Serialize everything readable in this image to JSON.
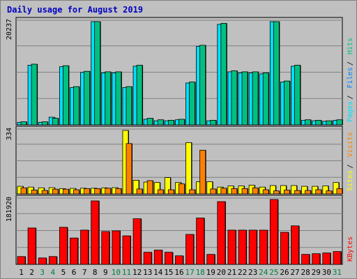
{
  "chart_data": {
    "type": "bar",
    "title": "Daily usage for August 2019",
    "categories": [
      "1",
      "2",
      "3",
      "4",
      "5",
      "6",
      "7",
      "8",
      "9",
      "10",
      "11",
      "12",
      "13",
      "14",
      "15",
      "16",
      "17",
      "18",
      "19",
      "20",
      "21",
      "22",
      "23",
      "24",
      "25",
      "26",
      "27",
      "28",
      "29",
      "30",
      "31"
    ],
    "weekend_days": [
      "3",
      "4",
      "10",
      "11",
      "17",
      "18",
      "24",
      "25",
      "31"
    ],
    "panels": [
      {
        "name": "pages-files-hits",
        "axis_max_label": "20237",
        "ylim": [
          0,
          20237
        ],
        "legend": [
          {
            "label": "Pages",
            "color": "#00e0ff"
          },
          {
            "label": "Files",
            "color": "#0080ff"
          },
          {
            "label": "Hits",
            "color": "#00c080"
          }
        ],
        "series": [
          {
            "name": "Pages",
            "color": "#00e0ff",
            "values": [
              500,
              11700,
              500,
              1500,
              11400,
              7300,
              10300,
              20237,
              10200,
              10200,
              7300,
              11500,
              1100,
              800,
              800,
              1000,
              8200,
              15400,
              800,
              19700,
              10400,
              10200,
              10200,
              10000,
              20237,
              8400,
              11500,
              900,
              800,
              700,
              900
            ]
          },
          {
            "name": "Hits",
            "color": "#00c080",
            "values": [
              600,
              11900,
              600,
              1300,
              11600,
              7500,
              10500,
              20237,
              10400,
              10400,
              7500,
              11700,
              1300,
              1000,
              900,
              1100,
              8400,
              15600,
              900,
              19900,
              10600,
              10400,
              10400,
              10200,
              20237,
              8600,
              11700,
              1000,
              900,
              800,
              1000
            ]
          }
        ]
      },
      {
        "name": "sites-visits",
        "axis_max_label": "334",
        "ylim": [
          0,
          334
        ],
        "legend": [
          {
            "label": "Sites",
            "color": "#ffff00"
          },
          {
            "label": "Visits",
            "color": "#ff8000"
          }
        ],
        "series": [
          {
            "name": "Sites",
            "color": "#ffff00",
            "values": [
              40,
              36,
              32,
              33,
              28,
              29,
              30,
              30,
              32,
              33,
              334,
              72,
              62,
              60,
              86,
              60,
              270,
              64,
              64,
              36,
              42,
              42,
              46,
              36,
              44,
              44,
              44,
              40,
              40,
              42,
              60
            ]
          },
          {
            "name": "Visits",
            "color": "#ff8000",
            "values": [
              32,
              20,
              18,
              25,
              25,
              22,
              28,
              28,
              30,
              28,
              265,
              26,
              70,
              22,
              22,
              53,
              22,
              230,
              26,
              30,
              28,
              28,
              32,
              22,
              16,
              20,
              18,
              18,
              22,
              16,
              28
            ]
          }
        ]
      },
      {
        "name": "kbytes",
        "axis_max_label": "181920",
        "ylim": [
          0,
          181920
        ],
        "legend": [
          {
            "label": "KBytes",
            "color": "#ff0000"
          }
        ],
        "series": [
          {
            "name": "KBytes",
            "color": "#ff0000",
            "values": [
              22000,
              102000,
              18000,
              22000,
              104000,
              74000,
              96000,
              178000,
              92000,
              94000,
              80000,
              128000,
              34000,
              40000,
              34000,
              24000,
              84000,
              130000,
              28000,
              176000,
              96000,
              96000,
              96000,
              96000,
              181920,
              90000,
              108000,
              28000,
              30000,
              32000,
              36000
            ]
          }
        ]
      }
    ]
  }
}
